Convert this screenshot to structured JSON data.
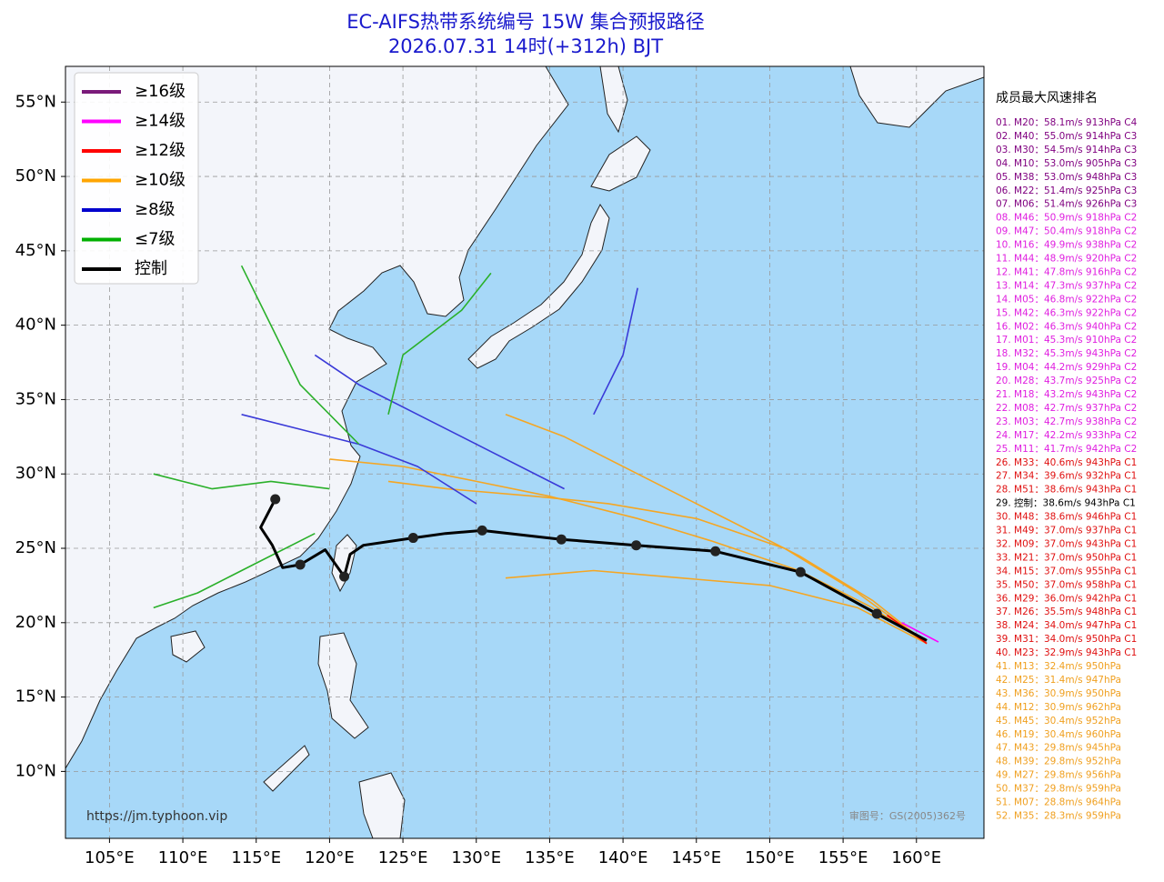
{
  "header": {
    "title": "EC-AIFS热带系统编号 15W 集合预报路径",
    "subtitle": "2026.07.31 14时(+312h) BJT"
  },
  "map": {
    "xlim": [
      102,
      164.6
    ],
    "ylim": [
      5.5,
      57.4
    ],
    "xticks": [
      {
        "value": 105,
        "label": "105°E"
      },
      {
        "value": 110,
        "label": "110°E"
      },
      {
        "value": 115,
        "label": "115°E"
      },
      {
        "value": 120,
        "label": "120°E"
      },
      {
        "value": 125,
        "label": "125°E"
      },
      {
        "value": 130,
        "label": "130°E"
      },
      {
        "value": 135,
        "label": "135°E"
      },
      {
        "value": 140,
        "label": "140°E"
      },
      {
        "value": 145,
        "label": "145°E"
      },
      {
        "value": 150,
        "label": "150°E"
      },
      {
        "value": 155,
        "label": "155°E"
      },
      {
        "value": 160,
        "label": "160°E"
      }
    ],
    "yticks": [
      {
        "value": 10,
        "label": "10°N"
      },
      {
        "value": 15,
        "label": "15°N"
      },
      {
        "value": 20,
        "label": "20°N"
      },
      {
        "value": 25,
        "label": "25°N"
      },
      {
        "value": 30,
        "label": "30°N"
      },
      {
        "value": 35,
        "label": "35°N"
      },
      {
        "value": 40,
        "label": "40°N"
      },
      {
        "value": 45,
        "label": "45°N"
      },
      {
        "value": 50,
        "label": "50°N"
      },
      {
        "value": 55,
        "label": "55°N"
      }
    ],
    "grid": true,
    "legend": [
      {
        "name": "≥16级",
        "color": "#7a1a7a"
      },
      {
        "name": "≥14级",
        "color": "#ff00ff"
      },
      {
        "name": "≥12级",
        "color": "#ff0000"
      },
      {
        "name": "≥10级",
        "color": "#ffa500"
      },
      {
        "name": "≥8级",
        "color": "#0000cd"
      },
      {
        "name": "≤7级",
        "color": "#00b000"
      },
      {
        "name": "控制",
        "color": "#000000"
      }
    ],
    "control": {
      "lon": [
        116.3,
        115.3,
        116.1,
        116.8,
        118.0,
        119.7,
        121.0,
        121.4,
        122.3,
        125.7,
        127.9,
        130.4,
        135.8,
        140.9,
        146.3,
        152.1,
        157.3,
        160.7
      ],
      "lat": [
        28.3,
        26.4,
        25.2,
        23.7,
        23.9,
        24.9,
        23.1,
        24.6,
        25.2,
        25.7,
        26.0,
        26.2,
        25.6,
        25.2,
        24.8,
        23.4,
        20.6,
        18.8
      ],
      "dots": [
        0,
        4,
        6,
        9,
        11,
        12,
        13,
        14,
        15,
        16
      ]
    },
    "members": [
      {
        "color": "#f5a623",
        "lon": [
          160.7,
          157,
          152,
          146,
          141,
          135,
          130,
          125,
          120
        ],
        "lat": [
          18.6,
          21,
          23.5,
          25.5,
          27,
          28.5,
          29.5,
          30.5,
          31
        ]
      },
      {
        "color": "#f5a623",
        "lon": [
          160.7,
          157,
          152,
          146,
          141,
          136,
          132
        ],
        "lat": [
          18.6,
          21.5,
          24.5,
          27.5,
          30,
          32.5,
          34
        ]
      },
      {
        "color": "#f5a623",
        "lon": [
          160.7,
          156,
          150,
          144,
          138,
          132
        ],
        "lat": [
          18.6,
          21,
          22.5,
          23,
          23.5,
          23
        ]
      },
      {
        "color": "#f5a623",
        "lon": [
          160.7,
          156,
          151,
          145,
          139,
          134,
          128,
          124
        ],
        "lat": [
          18.6,
          22,
          25,
          27,
          28,
          28.5,
          29,
          29.5
        ]
      },
      {
        "color": "#3a3ad8",
        "lon": [
          136,
          131,
          126,
          122,
          119
        ],
        "lat": [
          29,
          31.5,
          34,
          36,
          38
        ]
      },
      {
        "color": "#3a3ad8",
        "lon": [
          130,
          126,
          122,
          118,
          114
        ],
        "lat": [
          28,
          30.5,
          32,
          33,
          34
        ]
      },
      {
        "color": "#3a3ad8",
        "lon": [
          138,
          140,
          141
        ],
        "lat": [
          34,
          38,
          42.5
        ]
      },
      {
        "color": "#2ab02a",
        "lon": [
          122,
          118,
          116,
          114
        ],
        "lat": [
          32,
          36,
          40,
          44
        ]
      },
      {
        "color": "#2ab02a",
        "lon": [
          120,
          116,
          112,
          108
        ],
        "lat": [
          29,
          29.5,
          29,
          30
        ]
      },
      {
        "color": "#2ab02a",
        "lon": [
          119,
          115,
          111,
          108
        ],
        "lat": [
          26,
          24,
          22,
          21
        ]
      },
      {
        "color": "#2ab02a",
        "lon": [
          124,
          125,
          129,
          131
        ],
        "lat": [
          34,
          38,
          41,
          43.5
        ]
      },
      {
        "color": "#ff0000",
        "lon": [
          160.7,
          158
        ],
        "lat": [
          18.6,
          20.5
        ]
      },
      {
        "color": "#ff00ff",
        "lon": [
          161.5,
          159
        ],
        "lat": [
          18.7,
          20
        ]
      }
    ],
    "url": "https://jm.typhoon.vip",
    "approval": "审图号：GS(2005)362号"
  },
  "ranking": {
    "title": "成员最大风速排名",
    "entries": [
      {
        "text": "01. M20：58.1m/s 913hPa C4",
        "color": "#800080"
      },
      {
        "text": "02. M40：55.0m/s 914hPa C3",
        "color": "#800080"
      },
      {
        "text": "03. M30：54.5m/s 914hPa C3",
        "color": "#800080"
      },
      {
        "text": "04. M10：53.0m/s 905hPa C3",
        "color": "#800080"
      },
      {
        "text": "05. M38：53.0m/s 948hPa C3",
        "color": "#800080"
      },
      {
        "text": "06. M22：51.4m/s 925hPa C3",
        "color": "#800080"
      },
      {
        "text": "07. M06：51.4m/s 926hPa C3",
        "color": "#800080"
      },
      {
        "text": "08. M46：50.9m/s 918hPa C2",
        "color": "#e020e0"
      },
      {
        "text": "09. M47：50.4m/s 918hPa C2",
        "color": "#e020e0"
      },
      {
        "text": "10. M16：49.9m/s 938hPa C2",
        "color": "#e020e0"
      },
      {
        "text": "11. M44：48.9m/s 920hPa C2",
        "color": "#e020e0"
      },
      {
        "text": "12. M41：47.8m/s 916hPa C2",
        "color": "#e020e0"
      },
      {
        "text": "13. M14：47.3m/s 937hPa C2",
        "color": "#e020e0"
      },
      {
        "text": "14. M05：46.8m/s 922hPa C2",
        "color": "#e020e0"
      },
      {
        "text": "15. M42：46.3m/s 922hPa C2",
        "color": "#e020e0"
      },
      {
        "text": "16. M02：46.3m/s 940hPa C2",
        "color": "#e020e0"
      },
      {
        "text": "17. M01：45.3m/s 910hPa C2",
        "color": "#e020e0"
      },
      {
        "text": "18. M32：45.3m/s 943hPa C2",
        "color": "#e020e0"
      },
      {
        "text": "19. M04：44.2m/s 929hPa C2",
        "color": "#e020e0"
      },
      {
        "text": "20. M28：43.7m/s 925hPa C2",
        "color": "#e020e0"
      },
      {
        "text": "21. M18：43.2m/s 943hPa C2",
        "color": "#e020e0"
      },
      {
        "text": "22. M08：42.7m/s 937hPa C2",
        "color": "#e020e0"
      },
      {
        "text": "23. M03：42.7m/s 938hPa C2",
        "color": "#e020e0"
      },
      {
        "text": "24. M17：42.2m/s 933hPa C2",
        "color": "#e020e0"
      },
      {
        "text": "25. M11：41.7m/s 942hPa C2",
        "color": "#e020e0"
      },
      {
        "text": "26. M33：40.6m/s 943hPa C1",
        "color": "#e01010"
      },
      {
        "text": "27. M34：39.6m/s 932hPa C1",
        "color": "#e01010"
      },
      {
        "text": "28. M51：38.6m/s 943hPa C1",
        "color": "#e01010"
      },
      {
        "text": "29. 控制：38.6m/s 943hPa C1",
        "color": "#000000"
      },
      {
        "text": "30. M48：38.6m/s 946hPa C1",
        "color": "#e01010"
      },
      {
        "text": "31. M49：37.0m/s 937hPa C1",
        "color": "#e01010"
      },
      {
        "text": "32. M09：37.0m/s 943hPa C1",
        "color": "#e01010"
      },
      {
        "text": "33. M21：37.0m/s 950hPa C1",
        "color": "#e01010"
      },
      {
        "text": "34. M15：37.0m/s 955hPa C1",
        "color": "#e01010"
      },
      {
        "text": "35. M50：37.0m/s 958hPa C1",
        "color": "#e01010"
      },
      {
        "text": "36. M29：36.0m/s 942hPa C1",
        "color": "#e01010"
      },
      {
        "text": "37. M26：35.5m/s 948hPa C1",
        "color": "#e01010"
      },
      {
        "text": "38. M24：34.0m/s 947hPa C1",
        "color": "#e01010"
      },
      {
        "text": "39. M31：34.0m/s 950hPa C1",
        "color": "#e01010"
      },
      {
        "text": "40. M23：32.9m/s 943hPa C1",
        "color": "#e01010"
      },
      {
        "text": "41. M13：32.4m/s 950hPa",
        "color": "#f0a020"
      },
      {
        "text": "42. M25：31.4m/s 947hPa",
        "color": "#f0a020"
      },
      {
        "text": "43. M36：30.9m/s 950hPa",
        "color": "#f0a020"
      },
      {
        "text": "44. M12：30.9m/s 962hPa",
        "color": "#f0a020"
      },
      {
        "text": "45. M45：30.4m/s 952hPa",
        "color": "#f0a020"
      },
      {
        "text": "46. M19：30.4m/s 960hPa",
        "color": "#f0a020"
      },
      {
        "text": "47. M43：29.8m/s 945hPa",
        "color": "#f0a020"
      },
      {
        "text": "48. M39：29.8m/s 952hPa",
        "color": "#f0a020"
      },
      {
        "text": "49. M27：29.8m/s 956hPa",
        "color": "#f0a020"
      },
      {
        "text": "50. M37：29.8m/s 959hPa",
        "color": "#f0a020"
      },
      {
        "text": "51. M07：28.8m/s 964hPa",
        "color": "#f0a020"
      },
      {
        "text": "52. M35：28.3m/s 959hPa",
        "color": "#f0a020"
      }
    ]
  }
}
